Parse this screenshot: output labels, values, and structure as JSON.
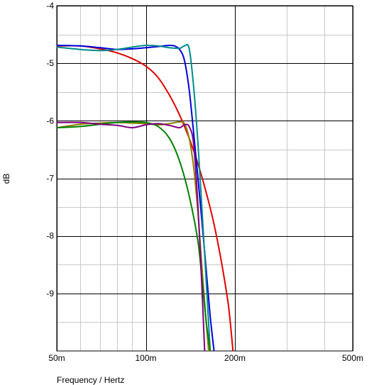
{
  "chart_data": {
    "type": "line",
    "title": "",
    "xlabel": "Frequency / Hertz",
    "ylabel": "dB",
    "x_scale": "log",
    "xlim": [
      0.05,
      0.5
    ],
    "ylim": [
      -10,
      -4
    ],
    "x_ticks": [
      {
        "value": 0.05,
        "label": "50m"
      },
      {
        "value": 0.1,
        "label": "100m"
      },
      {
        "value": 0.2,
        "label": "200m"
      },
      {
        "value": 0.5,
        "label": "500m"
      }
    ],
    "y_ticks": [
      {
        "value": -4,
        "label": "-4"
      },
      {
        "value": -5,
        "label": "-5"
      },
      {
        "value": -6,
        "label": "-6"
      },
      {
        "value": -7,
        "label": "-7"
      },
      {
        "value": -8,
        "label": "-8"
      },
      {
        "value": -9,
        "label": "-9"
      }
    ],
    "grid": true,
    "minor_grid": true,
    "series": [
      {
        "color": "#e00000",
        "points": [
          [
            0.05,
            -4.7
          ],
          [
            0.06,
            -4.7
          ],
          [
            0.07,
            -4.75
          ],
          [
            0.08,
            -4.82
          ],
          [
            0.09,
            -4.92
          ],
          [
            0.1,
            -5.05
          ],
          [
            0.11,
            -5.25
          ],
          [
            0.12,
            -5.55
          ],
          [
            0.13,
            -5.9
          ],
          [
            0.14,
            -6.3
          ],
          [
            0.15,
            -6.75
          ],
          [
            0.16,
            -7.25
          ],
          [
            0.17,
            -7.8
          ],
          [
            0.18,
            -8.45
          ],
          [
            0.19,
            -9.2
          ],
          [
            0.197,
            -10.0
          ]
        ]
      },
      {
        "color": "#0000dd",
        "points": [
          [
            0.05,
            -4.69
          ],
          [
            0.06,
            -4.7
          ],
          [
            0.07,
            -4.73
          ],
          [
            0.08,
            -4.76
          ],
          [
            0.09,
            -4.75
          ],
          [
            0.1,
            -4.73
          ],
          [
            0.11,
            -4.71
          ],
          [
            0.12,
            -4.69
          ],
          [
            0.125,
            -4.7
          ],
          [
            0.13,
            -4.76
          ],
          [
            0.135,
            -4.95
          ],
          [
            0.14,
            -5.45
          ],
          [
            0.145,
            -6.2
          ],
          [
            0.15,
            -7.0
          ],
          [
            0.155,
            -7.8
          ],
          [
            0.16,
            -8.6
          ],
          [
            0.165,
            -9.4
          ],
          [
            0.17,
            -10.0
          ]
        ]
      },
      {
        "color": "#008b8b",
        "points": [
          [
            0.05,
            -4.72
          ],
          [
            0.06,
            -4.76
          ],
          [
            0.07,
            -4.78
          ],
          [
            0.08,
            -4.76
          ],
          [
            0.09,
            -4.72
          ],
          [
            0.1,
            -4.69
          ],
          [
            0.11,
            -4.7
          ],
          [
            0.12,
            -4.73
          ],
          [
            0.13,
            -4.74
          ],
          [
            0.135,
            -4.7
          ],
          [
            0.14,
            -4.74
          ],
          [
            0.145,
            -5.4
          ],
          [
            0.15,
            -6.4
          ],
          [
            0.155,
            -7.6
          ],
          [
            0.16,
            -8.8
          ],
          [
            0.165,
            -10.0
          ]
        ]
      },
      {
        "color": "#8b8000",
        "points": [
          [
            0.05,
            -6.12
          ],
          [
            0.06,
            -6.06
          ],
          [
            0.07,
            -6.04
          ],
          [
            0.08,
            -6.03
          ],
          [
            0.09,
            -6.04
          ],
          [
            0.1,
            -6.05
          ],
          [
            0.11,
            -6.07
          ],
          [
            0.12,
            -6.05
          ],
          [
            0.13,
            -6.02
          ],
          [
            0.135,
            -6.05
          ],
          [
            0.14,
            -6.3
          ],
          [
            0.145,
            -6.8
          ],
          [
            0.15,
            -7.6
          ],
          [
            0.155,
            -8.6
          ],
          [
            0.16,
            -9.5
          ],
          [
            0.163,
            -10.0
          ]
        ]
      },
      {
        "color": "#008000",
        "points": [
          [
            0.05,
            -6.12
          ],
          [
            0.06,
            -6.1
          ],
          [
            0.07,
            -6.06
          ],
          [
            0.08,
            -6.03
          ],
          [
            0.09,
            -6.02
          ],
          [
            0.1,
            -6.03
          ],
          [
            0.11,
            -6.1
          ],
          [
            0.12,
            -6.3
          ],
          [
            0.13,
            -6.7
          ],
          [
            0.14,
            -7.3
          ],
          [
            0.15,
            -8.1
          ],
          [
            0.155,
            -8.8
          ],
          [
            0.16,
            -9.5
          ],
          [
            0.165,
            -10.0
          ]
        ]
      },
      {
        "color": "#800080",
        "points": [
          [
            0.05,
            -6.03
          ],
          [
            0.06,
            -6.03
          ],
          [
            0.07,
            -6.06
          ],
          [
            0.08,
            -6.08
          ],
          [
            0.09,
            -6.12
          ],
          [
            0.1,
            -6.07
          ],
          [
            0.11,
            -6.05
          ],
          [
            0.12,
            -6.08
          ],
          [
            0.13,
            -6.12
          ],
          [
            0.135,
            -6.07
          ],
          [
            0.14,
            -6.1
          ],
          [
            0.145,
            -6.4
          ],
          [
            0.15,
            -7.5
          ],
          [
            0.155,
            -9.0
          ],
          [
            0.158,
            -10.0
          ]
        ]
      }
    ]
  }
}
